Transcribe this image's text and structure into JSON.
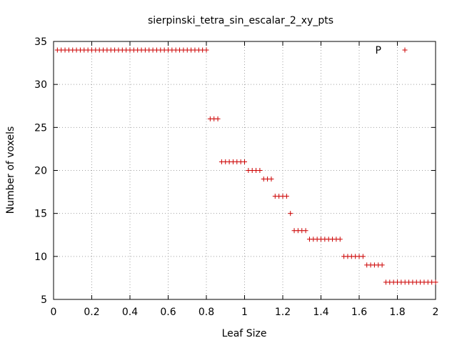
{
  "chart_data": {
    "type": "scatter",
    "title": "sierpinski_tetra_sin_escalar_2_xy_pts",
    "xlabel": "Leaf Size",
    "ylabel": "Number of voxels",
    "xlim": [
      0,
      2
    ],
    "ylim": [
      5,
      35
    ],
    "grid": true,
    "legend_position": "top-right",
    "x_ticks": [
      0,
      0.2,
      0.4,
      0.6,
      0.8,
      1,
      1.2,
      1.4,
      1.6,
      1.8,
      2
    ],
    "x_tick_labels": [
      "0",
      "0.2",
      "0.4",
      "0.6",
      "0.8",
      "1",
      "1.2",
      "1.4",
      "1.6",
      "1.8",
      "2"
    ],
    "y_ticks": [
      5,
      10,
      15,
      20,
      25,
      30,
      35
    ],
    "y_tick_labels": [
      "5",
      "10",
      "15",
      "20",
      "25",
      "30",
      "35"
    ],
    "series": [
      {
        "name": "P",
        "color": "#cc0000",
        "points": [
          [
            0.02,
            34
          ],
          [
            0.04,
            34
          ],
          [
            0.06,
            34
          ],
          [
            0.08,
            34
          ],
          [
            0.1,
            34
          ],
          [
            0.12,
            34
          ],
          [
            0.14,
            34
          ],
          [
            0.16,
            34
          ],
          [
            0.18,
            34
          ],
          [
            0.2,
            34
          ],
          [
            0.22,
            34
          ],
          [
            0.24,
            34
          ],
          [
            0.26,
            34
          ],
          [
            0.28,
            34
          ],
          [
            0.3,
            34
          ],
          [
            0.32,
            34
          ],
          [
            0.34,
            34
          ],
          [
            0.36,
            34
          ],
          [
            0.38,
            34
          ],
          [
            0.4,
            34
          ],
          [
            0.42,
            34
          ],
          [
            0.44,
            34
          ],
          [
            0.46,
            34
          ],
          [
            0.48,
            34
          ],
          [
            0.5,
            34
          ],
          [
            0.52,
            34
          ],
          [
            0.54,
            34
          ],
          [
            0.56,
            34
          ],
          [
            0.58,
            34
          ],
          [
            0.6,
            34
          ],
          [
            0.62,
            34
          ],
          [
            0.64,
            34
          ],
          [
            0.66,
            34
          ],
          [
            0.68,
            34
          ],
          [
            0.7,
            34
          ],
          [
            0.72,
            34
          ],
          [
            0.74,
            34
          ],
          [
            0.76,
            34
          ],
          [
            0.78,
            34
          ],
          [
            0.8,
            34
          ],
          [
            0.82,
            26
          ],
          [
            0.84,
            26
          ],
          [
            0.86,
            26
          ],
          [
            0.88,
            21
          ],
          [
            0.9,
            21
          ],
          [
            0.92,
            21
          ],
          [
            0.94,
            21
          ],
          [
            0.96,
            21
          ],
          [
            0.98,
            21
          ],
          [
            1.0,
            21
          ],
          [
            1.02,
            20
          ],
          [
            1.04,
            20
          ],
          [
            1.06,
            20
          ],
          [
            1.08,
            20
          ],
          [
            1.1,
            19
          ],
          [
            1.12,
            19
          ],
          [
            1.14,
            19
          ],
          [
            1.16,
            17
          ],
          [
            1.18,
            17
          ],
          [
            1.2,
            17
          ],
          [
            1.22,
            17
          ],
          [
            1.24,
            15
          ],
          [
            1.26,
            13
          ],
          [
            1.28,
            13
          ],
          [
            1.3,
            13
          ],
          [
            1.32,
            13
          ],
          [
            1.34,
            12
          ],
          [
            1.36,
            12
          ],
          [
            1.38,
            12
          ],
          [
            1.4,
            12
          ],
          [
            1.42,
            12
          ],
          [
            1.44,
            12
          ],
          [
            1.46,
            12
          ],
          [
            1.48,
            12
          ],
          [
            1.5,
            12
          ],
          [
            1.52,
            10
          ],
          [
            1.54,
            10
          ],
          [
            1.56,
            10
          ],
          [
            1.58,
            10
          ],
          [
            1.6,
            10
          ],
          [
            1.62,
            10
          ],
          [
            1.64,
            9
          ],
          [
            1.66,
            9
          ],
          [
            1.68,
            9
          ],
          [
            1.7,
            9
          ],
          [
            1.72,
            9
          ],
          [
            1.74,
            7
          ],
          [
            1.76,
            7
          ],
          [
            1.78,
            7
          ],
          [
            1.8,
            7
          ],
          [
            1.82,
            7
          ],
          [
            1.84,
            7
          ],
          [
            1.86,
            7
          ],
          [
            1.88,
            7
          ],
          [
            1.9,
            7
          ],
          [
            1.92,
            7
          ],
          [
            1.94,
            7
          ],
          [
            1.96,
            7
          ],
          [
            1.98,
            7
          ],
          [
            2.0,
            7
          ]
        ]
      }
    ]
  }
}
